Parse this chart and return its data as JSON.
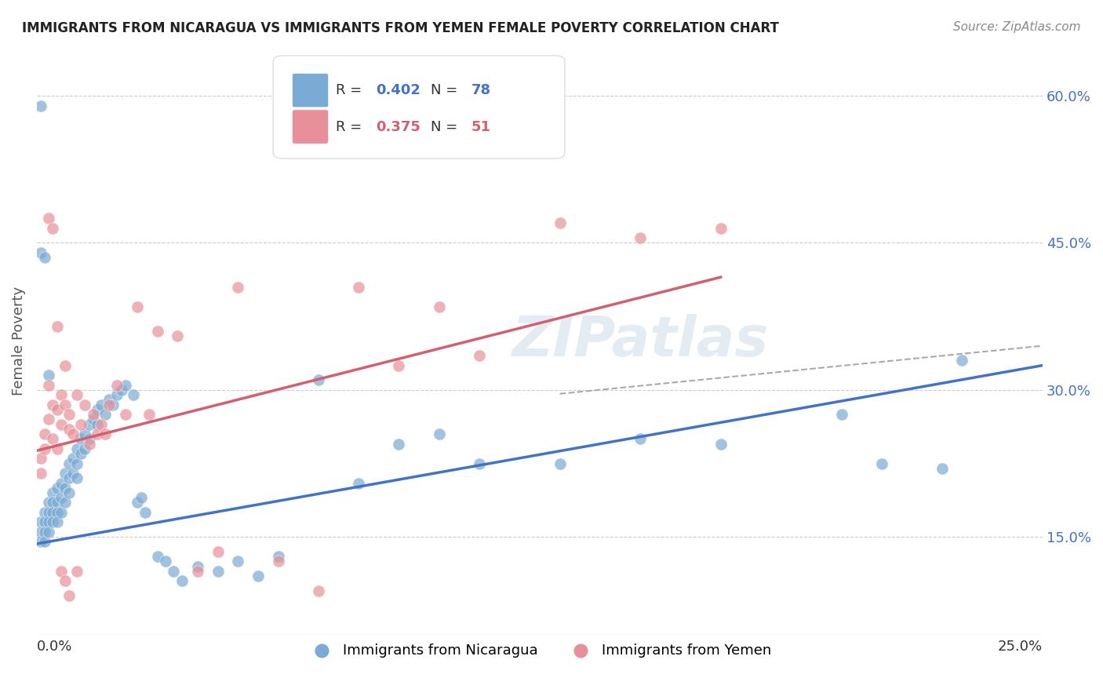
{
  "title": "IMMIGRANTS FROM NICARAGUA VS IMMIGRANTS FROM YEMEN FEMALE POVERTY CORRELATION CHART",
  "source": "Source: ZipAtlas.com",
  "ylabel": "Female Poverty",
  "ytick_values": [
    0.15,
    0.3,
    0.45,
    0.6
  ],
  "ytick_labels": [
    "15.0%",
    "30.0%",
    "45.0%",
    "60.0%"
  ],
  "xlim": [
    0.0,
    0.25
  ],
  "ylim": [
    0.05,
    0.65
  ],
  "watermark": "ZIPatlas",
  "legend_nicaragua_R": "0.402",
  "legend_nicaragua_N": "78",
  "legend_yemen_R": "0.375",
  "legend_yemen_N": "51",
  "blue_color": "#4472c4",
  "pink_color": "#d45f70",
  "blue_dot_color": "#7baad4",
  "pink_dot_color": "#e8909a",
  "dashed_color": "#aaaaaa",
  "nicaragua_x": [
    0.001,
    0.001,
    0.001,
    0.002,
    0.002,
    0.002,
    0.002,
    0.003,
    0.003,
    0.003,
    0.003,
    0.004,
    0.004,
    0.004,
    0.004,
    0.005,
    0.005,
    0.005,
    0.005,
    0.006,
    0.006,
    0.006,
    0.007,
    0.007,
    0.007,
    0.008,
    0.008,
    0.008,
    0.009,
    0.009,
    0.01,
    0.01,
    0.01,
    0.011,
    0.011,
    0.012,
    0.012,
    0.013,
    0.013,
    0.014,
    0.015,
    0.015,
    0.016,
    0.017,
    0.018,
    0.019,
    0.02,
    0.021,
    0.022,
    0.024,
    0.025,
    0.026,
    0.027,
    0.03,
    0.032,
    0.034,
    0.036,
    0.04,
    0.045,
    0.05,
    0.055,
    0.06,
    0.07,
    0.08,
    0.09,
    0.1,
    0.11,
    0.13,
    0.15,
    0.17,
    0.2,
    0.21,
    0.225,
    0.23,
    0.001,
    0.002,
    0.003,
    0.001
  ],
  "nicaragua_y": [
    0.165,
    0.155,
    0.145,
    0.175,
    0.165,
    0.155,
    0.145,
    0.185,
    0.175,
    0.165,
    0.155,
    0.195,
    0.185,
    0.175,
    0.165,
    0.2,
    0.185,
    0.175,
    0.165,
    0.205,
    0.19,
    0.175,
    0.215,
    0.2,
    0.185,
    0.225,
    0.21,
    0.195,
    0.23,
    0.215,
    0.24,
    0.225,
    0.21,
    0.25,
    0.235,
    0.255,
    0.24,
    0.265,
    0.25,
    0.27,
    0.28,
    0.265,
    0.285,
    0.275,
    0.29,
    0.285,
    0.295,
    0.3,
    0.305,
    0.295,
    0.185,
    0.19,
    0.175,
    0.13,
    0.125,
    0.115,
    0.105,
    0.12,
    0.115,
    0.125,
    0.11,
    0.13,
    0.31,
    0.205,
    0.245,
    0.255,
    0.225,
    0.225,
    0.25,
    0.245,
    0.275,
    0.225,
    0.22,
    0.33,
    0.44,
    0.435,
    0.315,
    0.59
  ],
  "yemen_x": [
    0.001,
    0.001,
    0.002,
    0.002,
    0.003,
    0.003,
    0.004,
    0.004,
    0.005,
    0.005,
    0.006,
    0.006,
    0.007,
    0.007,
    0.008,
    0.008,
    0.009,
    0.01,
    0.011,
    0.012,
    0.013,
    0.014,
    0.015,
    0.016,
    0.017,
    0.018,
    0.02,
    0.022,
    0.025,
    0.028,
    0.03,
    0.035,
    0.04,
    0.045,
    0.05,
    0.06,
    0.07,
    0.08,
    0.09,
    0.1,
    0.11,
    0.13,
    0.15,
    0.003,
    0.004,
    0.005,
    0.006,
    0.007,
    0.008,
    0.01,
    0.17
  ],
  "yemen_y": [
    0.23,
    0.215,
    0.255,
    0.24,
    0.305,
    0.27,
    0.285,
    0.25,
    0.28,
    0.24,
    0.295,
    0.265,
    0.325,
    0.285,
    0.275,
    0.26,
    0.255,
    0.295,
    0.265,
    0.285,
    0.245,
    0.275,
    0.255,
    0.265,
    0.255,
    0.285,
    0.305,
    0.275,
    0.385,
    0.275,
    0.36,
    0.355,
    0.115,
    0.135,
    0.405,
    0.125,
    0.095,
    0.405,
    0.325,
    0.385,
    0.335,
    0.47,
    0.455,
    0.475,
    0.465,
    0.365,
    0.115,
    0.105,
    0.09,
    0.115,
    0.465
  ],
  "nic_line_x": [
    0.0,
    0.25
  ],
  "nic_line_y": [
    0.143,
    0.325
  ],
  "yem_line_x": [
    0.0,
    0.17
  ],
  "yem_line_y": [
    0.238,
    0.415
  ],
  "dash_line_x": [
    0.13,
    0.25
  ],
  "dash_line_y": [
    0.296,
    0.345
  ]
}
